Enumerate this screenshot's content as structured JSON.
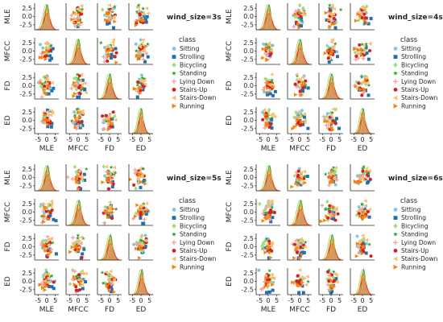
{
  "chart_data": {
    "type": "scatter",
    "description_kind": "pairplot grid with KDE diagonals",
    "variables": [
      "MLE",
      "MFCC",
      "FD",
      "ED"
    ],
    "x_ticks": [
      "-5",
      "0",
      "5"
    ],
    "y_ticks": [
      "2.5",
      "0.0",
      "-2.5"
    ],
    "y_ticks_values": [
      2.5,
      0.0,
      -2.5
    ],
    "x_ticks_values": [
      -5,
      0,
      5
    ],
    "xlim": [
      -7,
      7
    ],
    "ylim": [
      -4,
      4
    ],
    "legend": {
      "title": "class",
      "placement": "right",
      "entries": [
        {
          "label": "Sitting",
          "color": "#7ec8e3",
          "marker": "circle"
        },
        {
          "label": "Strolling",
          "color": "#1f6fb4",
          "marker": "square"
        },
        {
          "label": "Bicycling",
          "color": "#98e07a",
          "marker": "diamond"
        },
        {
          "label": "Standing",
          "color": "#2ca02c",
          "marker": "star"
        },
        {
          "label": "Lying Down",
          "color": "#f4a3a3",
          "marker": "plus"
        },
        {
          "label": "Stairs-Up",
          "color": "#e31a1c",
          "marker": "circle"
        },
        {
          "label": "Stairs-Down",
          "color": "#fdbf6f",
          "marker": "triangle-left"
        },
        {
          "label": "Running",
          "color": "#ff7f00",
          "marker": "triangle-right"
        }
      ]
    },
    "panels": [
      {
        "title": "wind_size=3s"
      },
      {
        "title": "wind_size=4s"
      },
      {
        "title": "wind_size=5s"
      },
      {
        "title": "wind_size=6s"
      }
    ]
  }
}
